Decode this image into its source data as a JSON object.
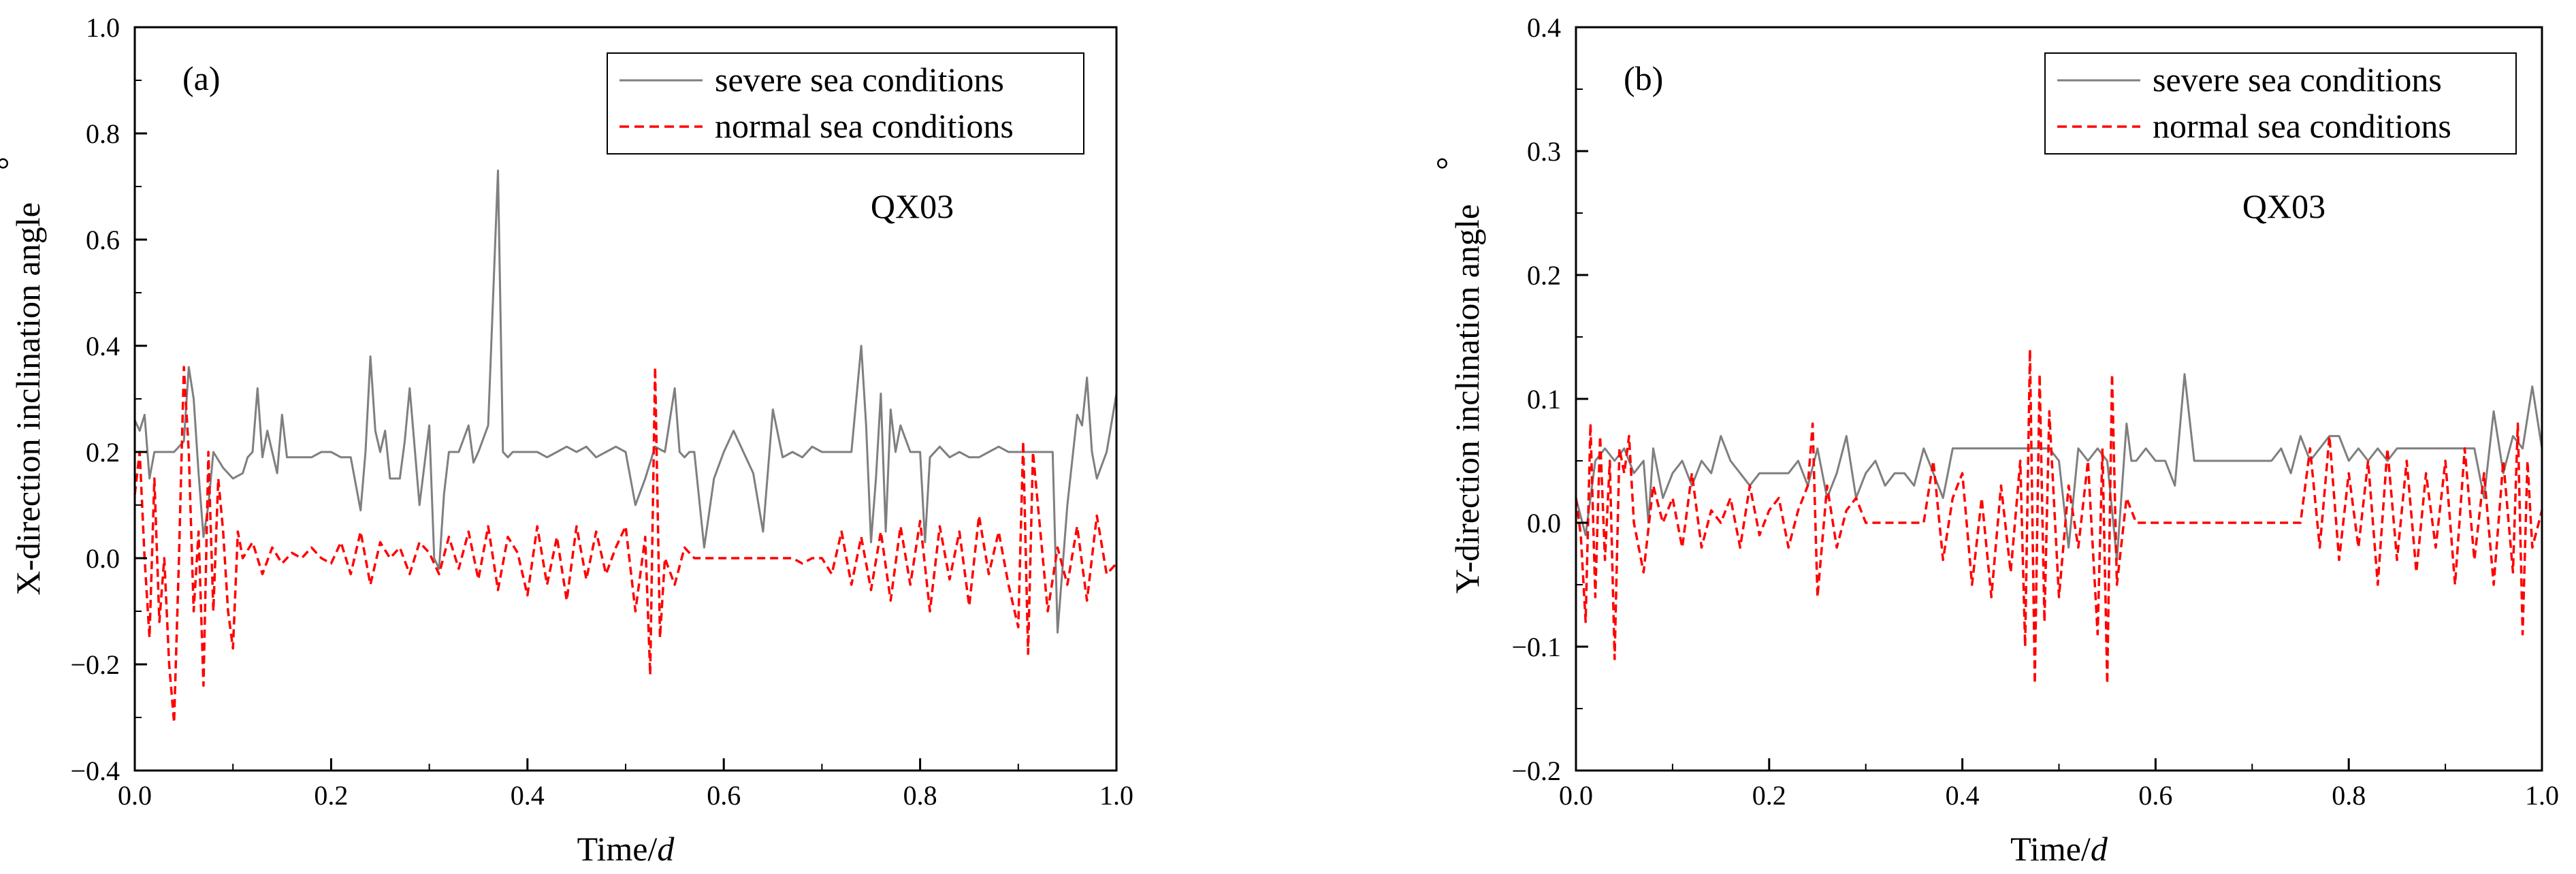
{
  "colors": {
    "severe": "#7f7f7f",
    "normal": "#ff0000",
    "axis": "#000000"
  },
  "chart_data": [
    {
      "type": "line",
      "panel_label": "(a)",
      "annotation": "QX03",
      "xlabel_main": "Time/",
      "xlabel_unit": "d",
      "ylabel": "X-direction inclination angle",
      "ylabel_unit": "°",
      "xlim": [
        0.0,
        1.0
      ],
      "ylim": [
        -0.4,
        1.0
      ],
      "xticks": [
        "0.0",
        "0.2",
        "0.4",
        "0.6",
        "0.8",
        "1.0"
      ],
      "yticks": [
        "−0.4",
        "−0.2",
        "0.0",
        "0.2",
        "0.4",
        "0.6",
        "0.8",
        "1.0"
      ],
      "xtick_values": [
        0.0,
        0.2,
        0.4,
        0.6,
        0.8,
        1.0
      ],
      "ytick_values": [
        -0.4,
        -0.2,
        0.0,
        0.2,
        0.4,
        0.6,
        0.8,
        1.0
      ],
      "legend_position": "top-right",
      "series": [
        {
          "name": "severe sea conditions",
          "style": "solid",
          "color": "#7f7f7f",
          "x": [
            0.0,
            0.005,
            0.01,
            0.015,
            0.02,
            0.03,
            0.04,
            0.05,
            0.055,
            0.06,
            0.065,
            0.07,
            0.075,
            0.08,
            0.09,
            0.1,
            0.11,
            0.115,
            0.12,
            0.125,
            0.13,
            0.135,
            0.14,
            0.145,
            0.15,
            0.155,
            0.16,
            0.17,
            0.18,
            0.19,
            0.2,
            0.21,
            0.22,
            0.23,
            0.235,
            0.24,
            0.245,
            0.25,
            0.255,
            0.26,
            0.27,
            0.275,
            0.28,
            0.29,
            0.3,
            0.305,
            0.31,
            0.315,
            0.32,
            0.33,
            0.34,
            0.345,
            0.35,
            0.36,
            0.37,
            0.375,
            0.38,
            0.385,
            0.39,
            0.4,
            0.41,
            0.42,
            0.43,
            0.44,
            0.45,
            0.46,
            0.47,
            0.48,
            0.49,
            0.5,
            0.51,
            0.52,
            0.53,
            0.54,
            0.55,
            0.555,
            0.56,
            0.565,
            0.57,
            0.58,
            0.59,
            0.6,
            0.61,
            0.62,
            0.63,
            0.64,
            0.65,
            0.66,
            0.67,
            0.68,
            0.69,
            0.7,
            0.71,
            0.72,
            0.73,
            0.735,
            0.74,
            0.745,
            0.75,
            0.755,
            0.76,
            0.765,
            0.77,
            0.775,
            0.78,
            0.79,
            0.8,
            0.805,
            0.81,
            0.82,
            0.83,
            0.84,
            0.85,
            0.86,
            0.87,
            0.88,
            0.89,
            0.9,
            0.91,
            0.92,
            0.93,
            0.935,
            0.94,
            0.95,
            0.96,
            0.965,
            0.97,
            0.975,
            0.98,
            0.99,
            1.0
          ],
          "y": [
            0.26,
            0.24,
            0.27,
            0.15,
            0.2,
            0.2,
            0.2,
            0.22,
            0.36,
            0.3,
            0.16,
            0.04,
            0.1,
            0.2,
            0.17,
            0.15,
            0.16,
            0.19,
            0.2,
            0.32,
            0.19,
            0.24,
            0.2,
            0.16,
            0.27,
            0.19,
            0.19,
            0.19,
            0.19,
            0.2,
            0.2,
            0.19,
            0.19,
            0.09,
            0.2,
            0.38,
            0.24,
            0.2,
            0.24,
            0.15,
            0.15,
            0.22,
            0.32,
            0.1,
            0.25,
            0.0,
            -0.02,
            0.12,
            0.2,
            0.2,
            0.25,
            0.18,
            0.2,
            0.25,
            0.73,
            0.2,
            0.19,
            0.2,
            0.2,
            0.2,
            0.2,
            0.19,
            0.2,
            0.21,
            0.2,
            0.21,
            0.19,
            0.2,
            0.21,
            0.2,
            0.1,
            0.15,
            0.21,
            0.2,
            0.32,
            0.2,
            0.19,
            0.2,
            0.2,
            0.02,
            0.15,
            0.2,
            0.24,
            0.2,
            0.16,
            0.05,
            0.28,
            0.19,
            0.2,
            0.19,
            0.21,
            0.2,
            0.2,
            0.2,
            0.2,
            0.3,
            0.4,
            0.25,
            0.03,
            0.15,
            0.31,
            0.05,
            0.28,
            0.2,
            0.25,
            0.2,
            0.2,
            0.03,
            0.19,
            0.21,
            0.19,
            0.2,
            0.19,
            0.19,
            0.2,
            0.21,
            0.2,
            0.2,
            0.2,
            0.2,
            0.2,
            0.2,
            -0.14,
            0.1,
            0.27,
            0.25,
            0.34,
            0.2,
            0.15,
            0.2,
            0.31
          ]
        },
        {
          "name": "normal sea conditions",
          "style": "dashed",
          "color": "#ff0000",
          "x": [
            0.0,
            0.005,
            0.01,
            0.015,
            0.02,
            0.025,
            0.03,
            0.035,
            0.04,
            0.045,
            0.05,
            0.055,
            0.06,
            0.065,
            0.07,
            0.075,
            0.08,
            0.085,
            0.09,
            0.095,
            0.1,
            0.105,
            0.11,
            0.12,
            0.13,
            0.14,
            0.15,
            0.16,
            0.17,
            0.18,
            0.19,
            0.2,
            0.21,
            0.22,
            0.23,
            0.24,
            0.25,
            0.26,
            0.27,
            0.28,
            0.29,
            0.3,
            0.31,
            0.32,
            0.33,
            0.34,
            0.35,
            0.36,
            0.37,
            0.38,
            0.39,
            0.4,
            0.41,
            0.42,
            0.43,
            0.44,
            0.45,
            0.46,
            0.47,
            0.48,
            0.49,
            0.5,
            0.51,
            0.52,
            0.525,
            0.53,
            0.535,
            0.54,
            0.55,
            0.56,
            0.57,
            0.58,
            0.59,
            0.6,
            0.61,
            0.62,
            0.63,
            0.64,
            0.65,
            0.66,
            0.67,
            0.68,
            0.69,
            0.7,
            0.71,
            0.72,
            0.73,
            0.74,
            0.75,
            0.76,
            0.77,
            0.78,
            0.79,
            0.8,
            0.81,
            0.82,
            0.83,
            0.84,
            0.85,
            0.86,
            0.87,
            0.88,
            0.89,
            0.9,
            0.905,
            0.91,
            0.915,
            0.92,
            0.93,
            0.94,
            0.95,
            0.96,
            0.97,
            0.98,
            0.99,
            1.0
          ],
          "y": [
            0.12,
            0.2,
            0.0,
            -0.15,
            0.15,
            -0.12,
            0.0,
            -0.2,
            -0.31,
            0.0,
            0.36,
            0.2,
            -0.1,
            0.05,
            -0.24,
            0.2,
            -0.1,
            0.15,
            0.05,
            -0.1,
            -0.17,
            0.05,
            0.0,
            0.03,
            -0.03,
            0.02,
            -0.01,
            0.01,
            0.0,
            0.02,
            0.0,
            -0.01,
            0.03,
            -0.03,
            0.05,
            -0.05,
            0.03,
            0.0,
            0.02,
            -0.03,
            0.03,
            0.01,
            -0.03,
            0.04,
            -0.02,
            0.05,
            -0.04,
            0.06,
            -0.06,
            0.04,
            0.01,
            -0.07,
            0.06,
            -0.05,
            0.04,
            -0.08,
            0.06,
            -0.04,
            0.05,
            -0.03,
            0.02,
            0.06,
            -0.1,
            0.04,
            -0.22,
            0.36,
            -0.15,
            0.0,
            -0.05,
            0.02,
            0.0,
            0.0,
            0.0,
            0.0,
            0.0,
            0.0,
            0.0,
            0.0,
            0.0,
            0.0,
            0.0,
            -0.01,
            0.0,
            0.0,
            -0.03,
            0.05,
            -0.05,
            0.04,
            -0.06,
            0.05,
            -0.08,
            0.06,
            -0.05,
            0.07,
            -0.1,
            0.06,
            -0.04,
            0.05,
            -0.09,
            0.08,
            -0.03,
            0.05,
            -0.05,
            -0.13,
            0.22,
            -0.18,
            0.2,
            0.1,
            -0.1,
            0.02,
            -0.05,
            0.06,
            -0.08,
            0.08,
            -0.03,
            -0.01
          ]
        }
      ]
    },
    {
      "type": "line",
      "panel_label": "(b)",
      "annotation": "QX03",
      "xlabel_main": "Time/",
      "xlabel_unit": "d",
      "ylabel": "Y-direction inclination angle",
      "ylabel_unit": "°",
      "xlim": [
        0.0,
        1.0
      ],
      "ylim": [
        -0.2,
        0.4
      ],
      "xticks": [
        "0.0",
        "0.2",
        "0.4",
        "0.6",
        "0.8",
        "1.0"
      ],
      "yticks": [
        "−0.2",
        "−0.1",
        "0.0",
        "0.1",
        "0.2",
        "0.3",
        "0.4"
      ],
      "xtick_values": [
        0.0,
        0.2,
        0.4,
        0.6,
        0.8,
        1.0
      ],
      "ytick_values": [
        -0.2,
        -0.1,
        0.0,
        0.1,
        0.2,
        0.3,
        0.4
      ],
      "legend_position": "top-right",
      "series": [
        {
          "name": "severe sea conditions",
          "style": "solid",
          "color": "#7f7f7f",
          "x": [
            0.0,
            0.01,
            0.02,
            0.03,
            0.04,
            0.05,
            0.06,
            0.07,
            0.075,
            0.08,
            0.09,
            0.1,
            0.11,
            0.12,
            0.13,
            0.14,
            0.15,
            0.16,
            0.17,
            0.18,
            0.19,
            0.2,
            0.21,
            0.22,
            0.23,
            0.24,
            0.25,
            0.26,
            0.27,
            0.28,
            0.29,
            0.3,
            0.31,
            0.32,
            0.33,
            0.34,
            0.35,
            0.36,
            0.37,
            0.38,
            0.39,
            0.4,
            0.42,
            0.44,
            0.46,
            0.48,
            0.49,
            0.5,
            0.51,
            0.52,
            0.53,
            0.54,
            0.55,
            0.56,
            0.57,
            0.575,
            0.58,
            0.59,
            0.6,
            0.61,
            0.62,
            0.63,
            0.64,
            0.65,
            0.66,
            0.68,
            0.7,
            0.72,
            0.73,
            0.74,
            0.75,
            0.76,
            0.77,
            0.78,
            0.79,
            0.8,
            0.81,
            0.82,
            0.83,
            0.84,
            0.85,
            0.86,
            0.87,
            0.88,
            0.9,
            0.92,
            0.93,
            0.94,
            0.95,
            0.96,
            0.97,
            0.98,
            0.99,
            1.0
          ],
          "y": [
            0.02,
            -0.01,
            0.05,
            0.06,
            0.05,
            0.06,
            0.04,
            0.05,
            0.0,
            0.06,
            0.02,
            0.04,
            0.05,
            0.03,
            0.05,
            0.04,
            0.07,
            0.05,
            0.04,
            0.03,
            0.04,
            0.04,
            0.04,
            0.04,
            0.05,
            0.03,
            0.06,
            0.02,
            0.04,
            0.07,
            0.02,
            0.04,
            0.05,
            0.03,
            0.04,
            0.04,
            0.03,
            0.06,
            0.04,
            0.02,
            0.06,
            0.06,
            0.06,
            0.06,
            0.06,
            0.06,
            0.06,
            0.05,
            -0.02,
            0.06,
            0.05,
            0.06,
            0.05,
            -0.03,
            0.08,
            0.05,
            0.05,
            0.06,
            0.05,
            0.05,
            0.03,
            0.12,
            0.05,
            0.05,
            0.05,
            0.05,
            0.05,
            0.05,
            0.06,
            0.04,
            0.07,
            0.05,
            0.06,
            0.07,
            0.07,
            0.05,
            0.06,
            0.05,
            0.06,
            0.05,
            0.06,
            0.06,
            0.06,
            0.06,
            0.06,
            0.06,
            0.06,
            0.02,
            0.09,
            0.04,
            0.07,
            0.06,
            0.11,
            0.06
          ]
        },
        {
          "name": "normal sea conditions",
          "style": "dashed",
          "color": "#ff0000",
          "x": [
            0.0,
            0.005,
            0.01,
            0.015,
            0.02,
            0.025,
            0.03,
            0.035,
            0.04,
            0.045,
            0.05,
            0.055,
            0.06,
            0.07,
            0.08,
            0.09,
            0.1,
            0.11,
            0.12,
            0.13,
            0.14,
            0.15,
            0.16,
            0.17,
            0.18,
            0.19,
            0.2,
            0.21,
            0.22,
            0.23,
            0.24,
            0.245,
            0.25,
            0.26,
            0.27,
            0.28,
            0.29,
            0.3,
            0.31,
            0.32,
            0.33,
            0.34,
            0.35,
            0.36,
            0.37,
            0.38,
            0.39,
            0.4,
            0.41,
            0.42,
            0.43,
            0.44,
            0.45,
            0.46,
            0.465,
            0.47,
            0.475,
            0.48,
            0.485,
            0.49,
            0.5,
            0.51,
            0.52,
            0.53,
            0.54,
            0.545,
            0.55,
            0.555,
            0.56,
            0.57,
            0.58,
            0.59,
            0.6,
            0.62,
            0.64,
            0.66,
            0.68,
            0.7,
            0.72,
            0.74,
            0.75,
            0.76,
            0.77,
            0.78,
            0.79,
            0.8,
            0.81,
            0.82,
            0.83,
            0.84,
            0.85,
            0.86,
            0.87,
            0.88,
            0.89,
            0.9,
            0.91,
            0.92,
            0.93,
            0.94,
            0.95,
            0.96,
            0.97,
            0.975,
            0.98,
            0.985,
            0.99,
            1.0
          ],
          "y": [
            0.02,
            -0.01,
            -0.08,
            0.08,
            -0.06,
            0.07,
            -0.03,
            0.05,
            -0.11,
            0.06,
            0.04,
            0.07,
            0.0,
            -0.04,
            0.03,
            0.0,
            0.02,
            -0.02,
            0.04,
            -0.02,
            0.01,
            0.0,
            0.02,
            -0.02,
            0.03,
            -0.01,
            0.01,
            0.02,
            -0.02,
            0.01,
            0.03,
            0.08,
            -0.06,
            0.03,
            -0.02,
            0.01,
            0.02,
            0.0,
            0.0,
            0.0,
            0.0,
            0.0,
            0.0,
            0.0,
            0.05,
            -0.03,
            0.02,
            0.04,
            -0.05,
            0.02,
            -0.06,
            0.03,
            -0.04,
            0.05,
            -0.1,
            0.14,
            -0.13,
            0.12,
            -0.08,
            0.09,
            -0.06,
            0.03,
            -0.02,
            0.05,
            -0.09,
            0.06,
            -0.13,
            0.12,
            -0.05,
            0.02,
            0.0,
            0.0,
            0.0,
            0.0,
            0.0,
            0.0,
            0.0,
            0.0,
            0.0,
            0.0,
            0.0,
            0.06,
            -0.02,
            0.07,
            -0.03,
            0.04,
            -0.02,
            0.05,
            -0.05,
            0.06,
            -0.03,
            0.05,
            -0.04,
            0.04,
            -0.02,
            0.05,
            -0.05,
            0.06,
            -0.03,
            0.04,
            -0.05,
            0.05,
            -0.04,
            0.08,
            -0.09,
            0.05,
            -0.02,
            0.01
          ]
        }
      ]
    }
  ]
}
